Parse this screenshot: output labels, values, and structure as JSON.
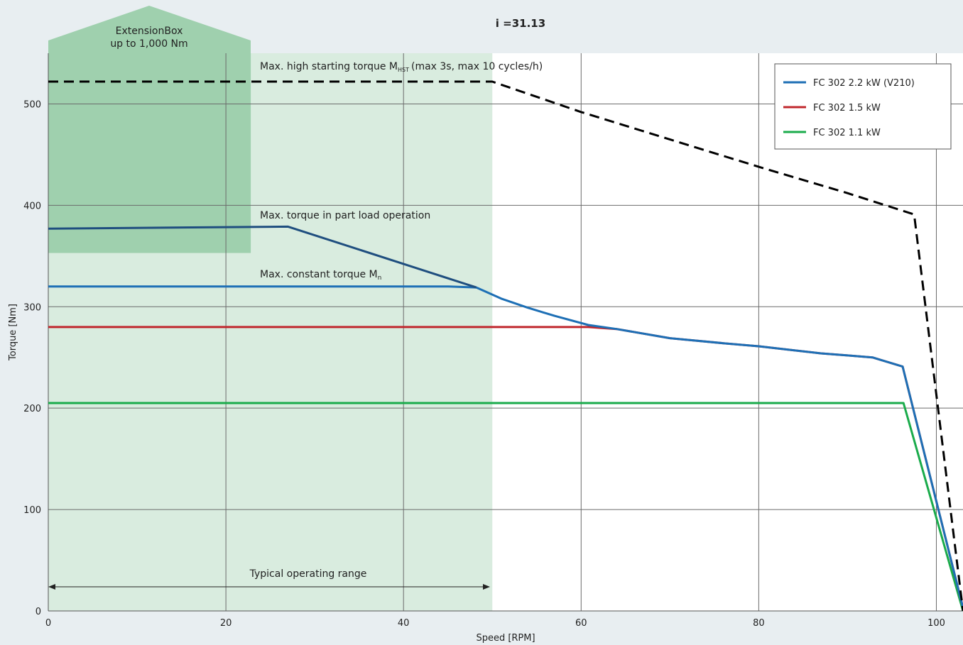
{
  "chart_data": {
    "type": "line",
    "title": "i =31.13",
    "xlabel": "Speed [RPM]",
    "ylabel": "Torque [Nm]",
    "xlim": [
      0,
      103
    ],
    "ylim": [
      0,
      550
    ],
    "x_ticks": [
      0,
      20,
      40,
      60,
      80,
      100
    ],
    "y_ticks": [
      0,
      100,
      200,
      300,
      400,
      500
    ],
    "grid": true,
    "legend_position": "top-right",
    "series": [
      {
        "name": "FC 302 2.2 kW (V210)",
        "color": "#1d6fb5",
        "points": [
          [
            0,
            320
          ],
          [
            45,
            320
          ],
          [
            48.2,
            319
          ],
          [
            51,
            308
          ],
          [
            54,
            299
          ],
          [
            57,
            291
          ],
          [
            60.8,
            282
          ],
          [
            64,
            278
          ],
          [
            70,
            269
          ],
          [
            76,
            264
          ],
          [
            80,
            261
          ],
          [
            84,
            257
          ],
          [
            87,
            254
          ],
          [
            90,
            252
          ],
          [
            92.8,
            250
          ],
          [
            96.2,
            241
          ],
          [
            103,
            3
          ]
        ]
      },
      {
        "name": "FC 302 1.5 kW",
        "color": "#c0272d",
        "points": [
          [
            0,
            280
          ],
          [
            60.8,
            280
          ],
          [
            64,
            278
          ],
          [
            70,
            269
          ],
          [
            76,
            264
          ],
          [
            80,
            261
          ],
          [
            84,
            257
          ],
          [
            87,
            254
          ],
          [
            90,
            252
          ],
          [
            92.8,
            250
          ],
          [
            96.2,
            241
          ],
          [
            103,
            3
          ]
        ]
      },
      {
        "name": "FC 302 1.1 kW",
        "color": "#1aab4b",
        "points": [
          [
            0,
            205
          ],
          [
            96.3,
            205
          ],
          [
            103,
            0
          ]
        ]
      },
      {
        "name": "",
        "color": "#1f4e7f",
        "points": [
          [
            0,
            377
          ],
          [
            27,
            379
          ],
          [
            48.2,
            319
          ]
        ]
      },
      {
        "name": "",
        "color": "#000000",
        "style": "dashed",
        "points": [
          [
            0,
            522
          ],
          [
            50,
            522
          ],
          [
            60,
            492
          ],
          [
            80,
            438
          ],
          [
            90,
            412
          ],
          [
            97.5,
            391
          ],
          [
            103,
            0
          ]
        ]
      }
    ],
    "regions": [
      {
        "label": "Typical operating range",
        "x_range": [
          0,
          50
        ],
        "y_range": [
          0,
          550
        ],
        "color": "#d9ecdf"
      },
      {
        "label": "ExtensionBox",
        "label_line2": "up to 1,000 Nm",
        "x_range": [
          0,
          22.8
        ],
        "y_range": [
          353,
          550
        ],
        "color": "#9fd0ae"
      }
    ],
    "annotations": {
      "hst_main": "Max. high starting torque M",
      "hst_sub": "HST",
      "hst_rest": "(max 3s, max 10 cycles/h)",
      "part_load": "Max. torque in part load operation",
      "constant_main": "Max. constant torque M",
      "constant_sub": "n",
      "operating_range": "Typical operating range"
    }
  }
}
